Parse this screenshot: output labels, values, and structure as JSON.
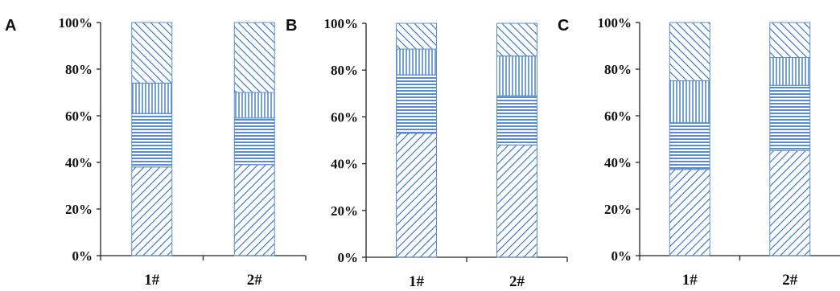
{
  "colors": {
    "pattern": "#2e6fc0",
    "outline": "#5b8fd0",
    "axis": "#222222"
  },
  "chart_data": [
    {
      "type": "bar",
      "stacked": true,
      "normalized": true,
      "panel_label": "A",
      "categories": [
        "1#",
        "2#"
      ],
      "ylim": [
        0,
        100
      ],
      "yticks": [
        "0%",
        "20%",
        "40%",
        "60%",
        "80%",
        "100%"
      ],
      "series": [
        {
          "pattern": "diagonal-down",
          "values": [
            38,
            39
          ]
        },
        {
          "pattern": "horizontal",
          "values": [
            23,
            20
          ]
        },
        {
          "pattern": "vertical",
          "values": [
            13,
            11
          ]
        },
        {
          "pattern": "diagonal-up",
          "values": [
            26,
            30
          ]
        }
      ]
    },
    {
      "type": "bar",
      "stacked": true,
      "normalized": true,
      "panel_label": "B",
      "categories": [
        "1#",
        "2#"
      ],
      "ylim": [
        0,
        100
      ],
      "yticks": [
        "0%",
        "20%",
        "40%",
        "60%",
        "80%",
        "100%"
      ],
      "series": [
        {
          "pattern": "diagonal-down",
          "values": [
            53,
            48
          ]
        },
        {
          "pattern": "horizontal",
          "values": [
            25,
            21
          ]
        },
        {
          "pattern": "vertical",
          "values": [
            11,
            17
          ]
        },
        {
          "pattern": "diagonal-up",
          "values": [
            11,
            14
          ]
        }
      ]
    },
    {
      "type": "bar",
      "stacked": true,
      "normalized": true,
      "panel_label": "C",
      "categories": [
        "1#",
        "2#"
      ],
      "ylim": [
        0,
        100
      ],
      "yticks": [
        "0%",
        "20%",
        "40%",
        "60%",
        "80%",
        "100%"
      ],
      "series": [
        {
          "pattern": "diagonal-down",
          "values": [
            37,
            45
          ]
        },
        {
          "pattern": "horizontal",
          "values": [
            20,
            28
          ]
        },
        {
          "pattern": "vertical",
          "values": [
            18,
            12
          ]
        },
        {
          "pattern": "diagonal-up",
          "values": [
            25,
            15
          ]
        }
      ]
    }
  ]
}
